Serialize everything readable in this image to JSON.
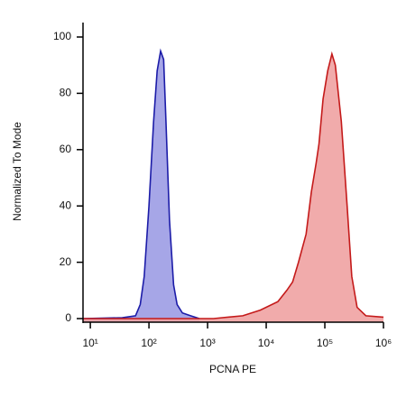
{
  "chart_data": {
    "type": "area",
    "xlabel": "PCNA PE",
    "ylabel": "Normalized To Mode",
    "xscale": "log",
    "xlim": [
      7.5,
      1000000
    ],
    "xticks": [
      {
        "value": 10,
        "label": "10¹"
      },
      {
        "value": 100,
        "label": "10²"
      },
      {
        "value": 1000,
        "label": "10³"
      },
      {
        "value": 10000,
        "label": "10⁴"
      },
      {
        "value": 100000,
        "label": "10⁵"
      },
      {
        "value": 1000000,
        "label": "10⁶"
      }
    ],
    "ylim": [
      0,
      100
    ],
    "yticks": [
      0,
      20,
      40,
      60,
      80,
      100
    ],
    "series": [
      {
        "color": "#1c1ca8",
        "fill": "#9c9ce4",
        "x": [
          7.5,
          35,
          59,
          71,
          83,
          100,
          120,
          138,
          158,
          178,
          195,
          224,
          263,
          302,
          372,
          513,
          724
        ],
        "values": [
          0,
          0.3,
          1,
          5,
          15,
          40,
          70,
          88,
          95,
          92,
          70,
          35,
          12,
          5,
          2,
          1,
          0
        ]
      },
      {
        "color": "#c41a1a",
        "fill": "#f0a2a2",
        "x": [
          7.5,
          1260,
          3980,
          7940,
          15800,
          22400,
          28200,
          35500,
          47900,
          58900,
          70800,
          79400,
          93300,
          112000,
          132000,
          151000,
          191000,
          240000,
          288000,
          355000,
          501000,
          1000000
        ],
        "values": [
          0,
          0,
          1,
          3,
          6,
          10,
          13,
          20,
          30,
          45,
          55,
          62,
          78,
          88,
          94,
          90,
          70,
          40,
          15,
          4,
          1,
          0.5
        ]
      }
    ]
  }
}
